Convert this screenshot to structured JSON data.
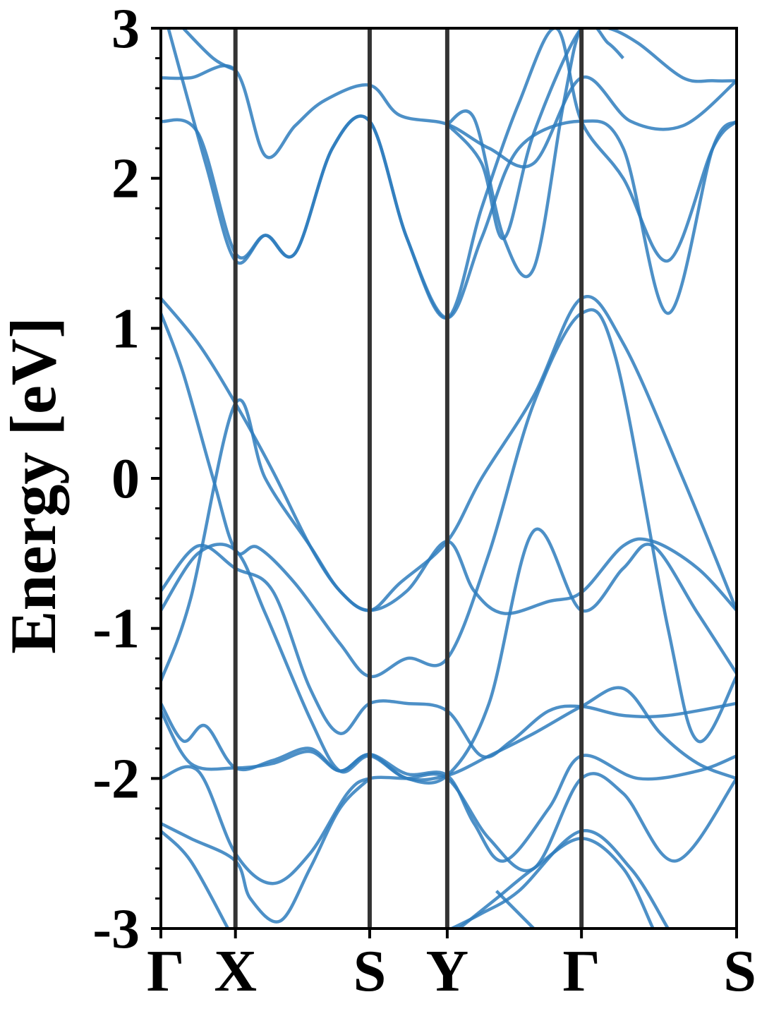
{
  "chart_data": {
    "type": "line",
    "title": "",
    "xlabel": "",
    "ylabel": "Energy [eV]",
    "ylim": [
      -3,
      3
    ],
    "grid": false,
    "legend": "none",
    "x_ticks": [
      {
        "label": "Γ",
        "x": 0
      },
      {
        "label": "X",
        "x": 1
      },
      {
        "label": "S",
        "x": 2.8
      },
      {
        "label": "Y",
        "x": 3.84
      },
      {
        "label": "Γ",
        "x": 5.64
      },
      {
        "label": "S",
        "x": 7.72
      }
    ],
    "y_ticks": [
      3,
      2,
      1,
      0,
      -1,
      -2,
      -3
    ],
    "y_tick_labels": [
      "3",
      "2",
      "1",
      "0",
      "-1",
      "-2",
      "-3"
    ],
    "colors": {
      "bands": "#2e7dbd",
      "path_lines": "#333333"
    },
    "series": [
      {
        "x": [
          0,
          0.5,
          1,
          1.5,
          2,
          2.4,
          2.8,
          3.2,
          3.84,
          4.3,
          5,
          5.64,
          6.2,
          7,
          7.72
        ],
        "values": [
          1.2,
          0.9,
          0.5,
          0.05,
          -0.45,
          -0.75,
          -0.88,
          -0.7,
          -0.42,
          0.0,
          0.55,
          1.2,
          0.9,
          0.0,
          -0.88
        ]
      },
      {
        "x": [
          0,
          0.3,
          0.7,
          1,
          1.3,
          1.8,
          2.4,
          2.8,
          3.3,
          3.84,
          4.4,
          5,
          5.64,
          6.1,
          6.8,
          7.2,
          7.72
        ],
        "values": [
          1.1,
          0.7,
          0.0,
          -0.48,
          -0.46,
          -0.7,
          -1.1,
          -1.32,
          -1.2,
          -1.2,
          -0.5,
          0.5,
          1.1,
          0.8,
          -1.0,
          -1.75,
          -1.32
        ]
      },
      {
        "x": [
          0,
          0.5,
          1,
          1.5,
          2,
          2.4,
          2.8,
          3.3,
          3.84,
          4.3,
          4.7,
          5.2,
          5.64,
          6.2,
          6.8,
          7.72
        ],
        "values": [
          -0.75,
          -0.45,
          -0.6,
          -0.75,
          -1.4,
          -1.7,
          -1.5,
          -1.5,
          -1.55,
          -1.85,
          -1.75,
          -1.55,
          -1.52,
          -1.58,
          -1.58,
          -1.5
        ]
      },
      {
        "x": [
          0,
          0.5,
          1,
          1.4,
          2,
          2.4,
          2.8,
          3.3,
          3.84,
          4.4,
          5,
          5.64,
          6.2,
          6.7,
          7.2,
          7.72
        ],
        "values": [
          -0.88,
          -0.5,
          -0.48,
          -0.9,
          -1.6,
          -1.95,
          -1.85,
          -2.0,
          -1.98,
          -1.85,
          -1.7,
          -1.52,
          -1.4,
          -1.7,
          -1.9,
          -2.0
        ]
      },
      {
        "x": [
          0,
          0.4,
          1,
          1.4,
          2,
          2.4,
          2.8,
          3.3,
          3.84,
          4.2,
          4.6,
          5.2,
          5.64,
          6.2,
          6.6,
          7.2,
          7.72
        ],
        "values": [
          -1.35,
          -0.8,
          0.5,
          0.0,
          -0.45,
          -0.75,
          -0.88,
          -0.75,
          -0.42,
          -0.75,
          -0.9,
          -0.82,
          -0.76,
          -0.45,
          -0.42,
          -0.6,
          -0.88
        ]
      },
      {
        "x": [
          0,
          0.3,
          0.6,
          1,
          1.5,
          2,
          2.4,
          2.8,
          3.3,
          3.84,
          4.4,
          5,
          5.64,
          6.2,
          6.6,
          7.2,
          7.72
        ],
        "values": [
          -1.5,
          -1.75,
          -1.65,
          -1.93,
          -1.88,
          -1.8,
          -1.95,
          -1.84,
          -2.0,
          -1.98,
          -1.5,
          -0.35,
          -0.88,
          -0.6,
          -0.45,
          -0.9,
          -1.3
        ]
      },
      {
        "x": [
          0,
          0.4,
          1,
          1.5,
          2,
          2.4,
          2.8,
          3.3,
          3.84,
          4.2,
          4.6,
          5.2,
          5.64,
          6.4,
          7.2,
          7.72
        ],
        "values": [
          -1.55,
          -1.9,
          -1.93,
          -1.9,
          -1.82,
          -1.95,
          -1.84,
          -1.97,
          -1.98,
          -2.3,
          -2.55,
          -2.2,
          -1.85,
          -2.0,
          -1.95,
          -1.85
        ]
      },
      {
        "x": [
          0,
          0.5,
          1,
          1.5,
          2,
          2.5,
          2.8,
          3.3,
          3.84,
          4.4,
          5,
          5.64,
          6.2,
          6.9,
          7.72
        ],
        "values": [
          -2.0,
          -1.95,
          -2.5,
          -2.7,
          -2.5,
          -2.1,
          -2.0,
          -2.0,
          -2.0,
          -2.4,
          -2.6,
          -2.0,
          -2.1,
          -2.55,
          -2.0
        ]
      },
      {
        "x": [
          0,
          0.4,
          1,
          1.2,
          1.6,
          2,
          2.4,
          2.8
        ],
        "values": [
          -2.3,
          -2.4,
          -2.55,
          -2.8,
          -2.95,
          -2.6,
          -2.2,
          -2.0
        ]
      },
      {
        "x": [
          0,
          0.4,
          0.9
        ],
        "values": [
          -2.35,
          -2.55,
          -3.0
        ]
      },
      {
        "x": [
          3.9,
          4.3,
          4.8,
          5.64,
          6.3,
          6.8
        ],
        "values": [
          -3.0,
          -2.9,
          -2.75,
          -2.35,
          -2.6,
          -3.0
        ]
      },
      {
        "x": [
          4.0,
          4.5,
          5.0,
          5.64,
          6.2,
          6.6
        ],
        "values": [
          -3.0,
          -2.8,
          -2.6,
          -2.4,
          -2.6,
          -3.0
        ]
      },
      {
        "x": [
          4.5,
          5.0
        ],
        "values": [
          -2.75,
          -3.0
        ]
      },
      {
        "x": [
          0,
          0.4,
          1,
          1.4,
          1.8,
          2.2,
          2.8,
          3.2,
          3.84,
          4.4,
          5,
          5.64,
          6.3,
          7.0,
          7.72
        ],
        "values": [
          2.67,
          2.67,
          2.72,
          2.15,
          2.35,
          2.52,
          2.62,
          2.42,
          2.36,
          2.2,
          2.1,
          2.67,
          2.38,
          2.35,
          2.65
        ]
      },
      {
        "x": [
          0,
          0.5,
          1,
          1.4,
          1.8,
          2.3,
          2.8,
          3.3,
          3.84,
          4.3,
          4.8,
          5.64,
          6.2,
          6.8,
          7.4,
          7.72
        ],
        "values": [
          2.38,
          2.3,
          1.5,
          1.62,
          1.5,
          2.2,
          2.38,
          1.6,
          1.07,
          1.6,
          2.2,
          2.38,
          2.2,
          1.1,
          2.2,
          2.38
        ]
      },
      {
        "x": [
          0.1,
          0.6,
          1,
          1.4,
          1.8,
          2.3,
          2.8,
          3.3,
          3.84,
          4.3,
          4.8,
          5.3,
          5.64,
          6.2,
          6.8,
          7.4,
          7.72
        ],
        "values": [
          3.0,
          2.1,
          1.45,
          1.62,
          1.5,
          2.2,
          2.38,
          1.6,
          1.07,
          1.8,
          2.5,
          3.0,
          2.38,
          2.0,
          1.45,
          2.2,
          2.38
        ]
      },
      {
        "x": [
          0.3,
          0.7,
          1
        ],
        "values": [
          3.0,
          2.8,
          2.72
        ]
      },
      {
        "x": [
          3.84,
          4.2,
          4.6,
          5.0,
          5.4,
          5.64,
          6.0,
          6.4,
          7.0,
          7.4,
          7.72
        ],
        "values": [
          2.36,
          2.4,
          1.6,
          1.4,
          2.5,
          3.0,
          3.0,
          2.9,
          2.67,
          2.65,
          2.65
        ]
      },
      {
        "x": [
          3.84,
          4.3,
          4.6,
          5.0,
          5.64,
          6.0,
          6.2
        ],
        "values": [
          2.36,
          2.1,
          1.6,
          2.3,
          3.0,
          2.9,
          2.8
        ]
      }
    ]
  }
}
